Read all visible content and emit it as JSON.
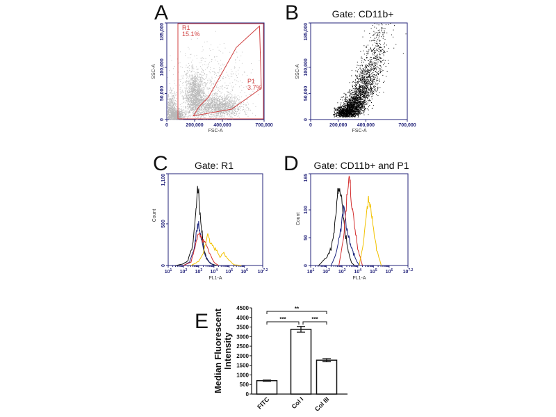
{
  "panels": {
    "A": {
      "letter": "A",
      "title": "",
      "xlabel": "FSC-A",
      "ylabel": "SSC-A",
      "gate_R1": {
        "name": "R1",
        "pct": "15.1%"
      },
      "gate_P1": {
        "name": "P1",
        "pct": "3.7%"
      }
    },
    "B": {
      "letter": "B",
      "title": "Gate: CD11b+",
      "xlabel": "FSC-A",
      "ylabel": "SSC-A"
    },
    "C": {
      "letter": "C",
      "title": "Gate: R1",
      "xlabel": "FL1-A",
      "ylabel": "Count"
    },
    "D": {
      "letter": "D",
      "title": "Gate: CD11b+ and P1",
      "xlabel": "FL1-A",
      "ylabel": "Count"
    },
    "E": {
      "letter": "E",
      "ylabel_line1": "Median Fluorescent",
      "ylabel_line2": "Intensity"
    }
  },
  "colors": {
    "axis": "#23237a",
    "gate": "#d04040",
    "scatter_A": "#b8b8b8",
    "scatter_B": "#000000",
    "black": "#111111",
    "navy": "#1a237e",
    "red": "#d32f2f",
    "yellow": "#f2c200"
  },
  "chart_data": [
    {
      "type": "scatter",
      "panel": "A",
      "xlabel": "FSC-A",
      "ylabel": "SSC-A",
      "xlim": [
        0,
        700000
      ],
      "ylim": [
        0,
        185000
      ],
      "xticks": [
        "0",
        "200,000",
        "400,000",
        "700,000"
      ],
      "xtick_values": [
        0,
        200000,
        400000,
        700000
      ],
      "yticks": [
        "0",
        "50,000",
        "100,000",
        "185,000"
      ],
      "ytick_values": [
        0,
        50000,
        100000,
        185000
      ],
      "gates": [
        {
          "name": "R1",
          "label": "15.1%",
          "shape": "rectangle",
          "x": [
            80000,
            700000
          ],
          "y": [
            0,
            185000
          ]
        },
        {
          "name": "P1",
          "label": "3.7%",
          "shape": "polygon",
          "points": [
            [
              191000,
              7000
            ],
            [
              233000,
              25000
            ],
            [
              300000,
              43000
            ],
            [
              500000,
              138000
            ],
            [
              667000,
              179000
            ],
            [
              680000,
              60000
            ],
            [
              467000,
              20000
            ]
          ]
        }
      ]
    },
    {
      "type": "scatter",
      "panel": "B",
      "title": "Gate: CD11b+",
      "xlabel": "FSC-A",
      "ylabel": "SSC-A",
      "xlim": [
        0,
        700000
      ],
      "ylim": [
        0,
        185000
      ],
      "xticks": [
        "0",
        "200,000",
        "400,000",
        "700,000"
      ],
      "xtick_values": [
        0,
        200000,
        400000,
        700000
      ],
      "yticks": [
        "0",
        "50,000",
        "100,000",
        "185,000"
      ],
      "ytick_values": [
        0,
        50000,
        100000,
        185000
      ]
    },
    {
      "type": "line",
      "panel": "C",
      "title": "Gate: R1",
      "xlabel": "FL1-A",
      "ylabel": "Count",
      "xscale": "log",
      "xlim": [
        1,
        7.2
      ],
      "ylim": [
        0,
        1100
      ],
      "xticks": [
        "1",
        "2",
        "3",
        "4",
        "5",
        "6",
        "7.2"
      ],
      "xtick_values": [
        1,
        2,
        3,
        4,
        5,
        6,
        7.2
      ],
      "yticks": [
        "0",
        "500",
        "1,100"
      ],
      "ytick_values": [
        0,
        500,
        1100
      ],
      "series": [
        {
          "color": "black",
          "points": [
            [
              1.5,
              0
            ],
            [
              2,
              20
            ],
            [
              2.3,
              60
            ],
            [
              2.6,
              250
            ],
            [
              2.8,
              600
            ],
            [
              2.95,
              950
            ],
            [
              3.1,
              600
            ],
            [
              3.3,
              250
            ],
            [
              3.5,
              80
            ],
            [
              3.8,
              20
            ],
            [
              4.2,
              0
            ]
          ]
        },
        {
          "color": "navy",
          "points": [
            [
              2,
              0
            ],
            [
              2.4,
              40
            ],
            [
              2.7,
              200
            ],
            [
              2.9,
              480
            ],
            [
              3.0,
              500
            ],
            [
              3.2,
              300
            ],
            [
              3.4,
              130
            ],
            [
              3.7,
              40
            ],
            [
              4,
              0
            ]
          ]
        },
        {
          "color": "red",
          "points": [
            [
              2,
              0
            ],
            [
              2.5,
              40
            ],
            [
              2.8,
              250
            ],
            [
              3.0,
              400
            ],
            [
              3.2,
              320
            ],
            [
              3.5,
              260
            ],
            [
              3.7,
              150
            ],
            [
              4,
              40
            ],
            [
              4.3,
              0
            ]
          ]
        },
        {
          "color": "yellow",
          "points": [
            [
              2.5,
              0
            ],
            [
              3,
              50
            ],
            [
              3.3,
              150
            ],
            [
              3.6,
              370
            ],
            [
              3.8,
              250
            ],
            [
              4.1,
              200
            ],
            [
              4.4,
              100
            ],
            [
              4.6,
              160
            ],
            [
              4.9,
              80
            ],
            [
              5.3,
              10
            ],
            [
              5.8,
              0
            ]
          ]
        }
      ]
    },
    {
      "type": "line",
      "panel": "D",
      "title": "Gate: CD11b+ and P1",
      "xlabel": "FL1-A",
      "ylabel": "Count",
      "xscale": "log",
      "xlim": [
        1,
        7.2
      ],
      "ylim": [
        0,
        165
      ],
      "xticks": [
        "1",
        "2",
        "3",
        "4",
        "5",
        "6",
        "7.2"
      ],
      "xtick_values": [
        1,
        2,
        3,
        4,
        5,
        6,
        7.2
      ],
      "yticks": [
        "0",
        "50",
        "100",
        "165"
      ],
      "ytick_values": [
        0,
        50,
        100,
        165
      ],
      "series": [
        {
          "color": "black",
          "points": [
            [
              1.5,
              0
            ],
            [
              2,
              15
            ],
            [
              2.3,
              30
            ],
            [
              2.5,
              60
            ],
            [
              2.7,
              125
            ],
            [
              2.85,
              140
            ],
            [
              3.0,
              110
            ],
            [
              3.2,
              60
            ],
            [
              3.4,
              25
            ],
            [
              3.6,
              5
            ],
            [
              3.8,
              0
            ]
          ]
        },
        {
          "color": "navy",
          "points": [
            [
              2.3,
              0
            ],
            [
              2.6,
              20
            ],
            [
              2.9,
              60
            ],
            [
              3.1,
              105
            ],
            [
              3.3,
              70
            ],
            [
              3.5,
              40
            ],
            [
              3.7,
              25
            ],
            [
              3.9,
              10
            ],
            [
              4.1,
              0
            ]
          ]
        },
        {
          "color": "red",
          "points": [
            [
              2.8,
              0
            ],
            [
              3.1,
              50
            ],
            [
              3.3,
              120
            ],
            [
              3.45,
              160
            ],
            [
              3.6,
              120
            ],
            [
              3.8,
              70
            ],
            [
              4.0,
              30
            ],
            [
              4.3,
              0
            ]
          ]
        },
        {
          "color": "yellow",
          "points": [
            [
              4.1,
              0
            ],
            [
              4.4,
              50
            ],
            [
              4.6,
              105
            ],
            [
              4.7,
              115
            ],
            [
              4.85,
              100
            ],
            [
              5.0,
              70
            ],
            [
              5.2,
              30
            ],
            [
              5.5,
              0
            ]
          ]
        }
      ]
    },
    {
      "type": "bar",
      "panel": "E",
      "ylabel": "Median Fluorescent Intensity",
      "categories": [
        "FITC",
        "Col I",
        "Col III"
      ],
      "values": [
        700,
        3380,
        1770
      ],
      "errors": [
        30,
        150,
        80
      ],
      "ylim": [
        0,
        4500
      ],
      "yticks": [
        "0",
        "500",
        "1000",
        "1500",
        "2000",
        "2500",
        "3000",
        "3500",
        "4000",
        "4500"
      ],
      "ytick_values": [
        0,
        500,
        1000,
        1500,
        2000,
        2500,
        3000,
        3500,
        4000,
        4500
      ],
      "significance": [
        {
          "from": "FITC",
          "to": "Col I",
          "label": "***"
        },
        {
          "from": "Col I",
          "to": "Col III",
          "label": "***"
        },
        {
          "from": "FITC",
          "to": "Col III",
          "label": "**"
        }
      ]
    }
  ]
}
